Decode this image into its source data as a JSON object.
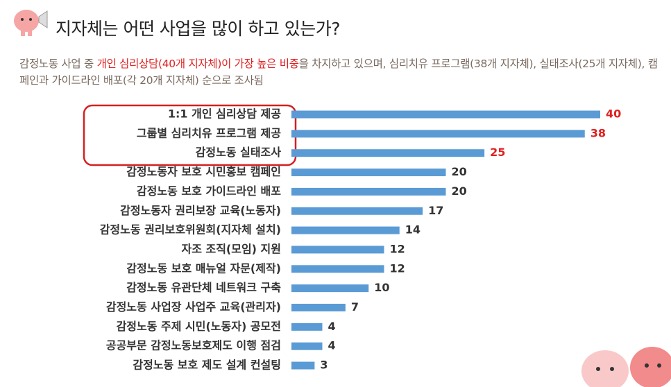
{
  "chart_data": {
    "type": "barh",
    "title": "지자체는 어떤 사업을 많이 하고 있는가?",
    "subtitle": [
      {
        "text": "감정노동 사업 중 ",
        "color": "#7a6a60"
      },
      {
        "text": "개인 심리상담(40개 지자체)이 가장 높은 비중",
        "color": "#e02020"
      },
      {
        "text": "을 차지하고 있으며, 심리치유 프로그램(38개 지자체), 실태조사(25개 지자체), 캠페인과 가이드라인 배포(각 20개 지자체) 순으로 조사됨",
        "color": "#7a6a60"
      }
    ],
    "categories": [
      "1:1 개인 심리상담 제공",
      "그룹별 심리치유 프로그램 제공",
      "감정노동 실태조사",
      "감정노동자 보호 시민홍보 캠페인",
      "감정노동 보호 가이드라인 배포",
      "감정노동자 권리보장 교육(노동자)",
      "감정노동 권리보호위원회(지자체 설치)",
      "자조 조직(모임) 지원",
      "감정노동 보호 매뉴얼 자문(제작)",
      "감정노동 유관단체 네트워크 구축",
      "감정노동 사업장 사업주 교육(관리자)",
      "감정노동 주제 시민(노동자) 공모전",
      "공공부문 감정노동보호제도 이행 점검",
      "감정노동 보호 제도 설계 컨설팅"
    ],
    "values": [
      40,
      38,
      25,
      20,
      20,
      17,
      14,
      12,
      12,
      10,
      7,
      4,
      4,
      3
    ],
    "color": "#5b9bd5",
    "value_label_colors": [
      "#e02020",
      "#e02020",
      "#e02020",
      "#333333",
      "#333333",
      "#333333",
      "#333333",
      "#333333",
      "#333333",
      "#333333",
      "#333333",
      "#333333",
      "#333333",
      "#333333"
    ],
    "xlim": [
      0,
      40
    ]
  }
}
